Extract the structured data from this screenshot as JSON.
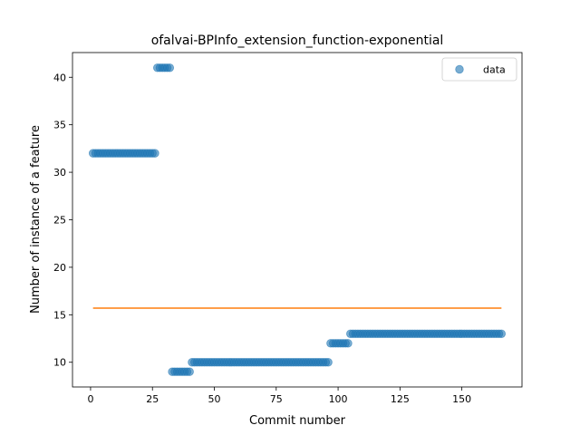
{
  "chart_data": {
    "type": "scatter",
    "title": "ofalvai-BPInfo_extension_function-exponential",
    "xlabel": "Commit number",
    "ylabel": "Number of instance of a feature",
    "xlim": [
      -7.3,
      174.3
    ],
    "ylim": [
      7.4,
      42.6
    ],
    "xticks": [
      0,
      25,
      50,
      75,
      100,
      125,
      150
    ],
    "yticks": [
      10,
      15,
      20,
      25,
      30,
      35,
      40
    ],
    "legend": {
      "position": "top-right",
      "entries": [
        "data"
      ]
    },
    "colors": {
      "data": "#1f77b4",
      "fit": "#ff7f0e"
    },
    "series": [
      {
        "name": "data",
        "kind": "scatter",
        "segments": [
          {
            "x_start": 1,
            "x_end": 26,
            "y": 32
          },
          {
            "x_start": 27,
            "x_end": 32,
            "y": 41
          },
          {
            "x_start": 33,
            "x_end": 40,
            "y": 9
          },
          {
            "x_start": 41,
            "x_end": 96,
            "y": 10
          },
          {
            "x_start": 97,
            "x_end": 104,
            "y": 12
          },
          {
            "x_start": 105,
            "x_end": 166,
            "y": 13
          }
        ]
      },
      {
        "kind": "line",
        "x": [
          1,
          166
        ],
        "y": [
          15.7,
          15.7
        ]
      }
    ]
  }
}
